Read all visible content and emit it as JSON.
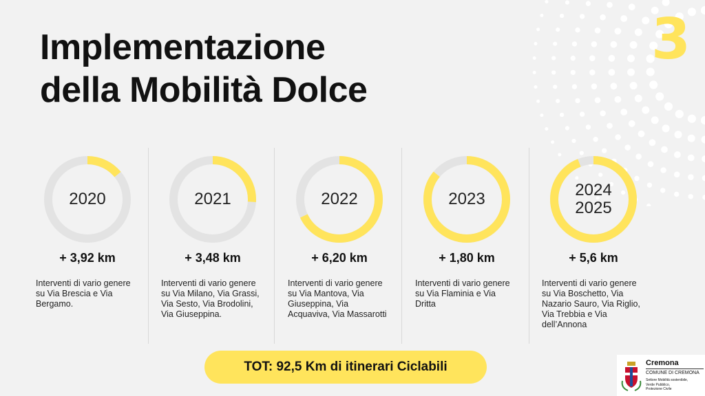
{
  "title_line1": "Implementazione",
  "title_line2": "della Mobilità Dolce",
  "page_number": "3",
  "accent_color": "#ffe45c",
  "track_color": "#e3e3e3",
  "items": [
    {
      "year_line1": "2020",
      "year_line2": "",
      "km": "+ 3,92 km",
      "progress": 0.14,
      "description": "Interventi di vario genere su Via Brescia e Via Bergamo."
    },
    {
      "year_line1": "2021",
      "year_line2": "",
      "km": "+ 3,48 km",
      "progress": 0.26,
      "description": "Interventi di vario genere su Via Milano, Via Grassi, Via Sesto, Via Brodolini, Via Giuseppina."
    },
    {
      "year_line1": "2022",
      "year_line2": "",
      "km": "+ 6,20 km",
      "progress": 0.68,
      "description": "Interventi di vario genere su Via Mantova, Via Giuseppina, Via Acquaviva, Via Massarotti"
    },
    {
      "year_line1": "2023",
      "year_line2": "",
      "km": "+ 1,80 km",
      "progress": 0.86,
      "description": "Interventi di vario genere su Via Flaminia e Via Dritta"
    },
    {
      "year_line1": "2024",
      "year_line2": "2025",
      "km": "+ 5,6 km",
      "progress": 0.94,
      "description": "Interventi di vario genere su Via Boschetto, Via Nazario Sauro, Via Riglio, Via Trebbia e Via dell’Annona"
    }
  ],
  "total": "TOT: 92,5 Km di itinerari Ciclabili",
  "logo": {
    "name": "Cremona",
    "subtitle": "COMUNE DI CREMONA",
    "dept_line1": "Settore Mobilità sostenibile,",
    "dept_line2": "Verde Pubblico,",
    "dept_line3": "Protezione Civile",
    "crest_icon": "city-crest-icon"
  }
}
